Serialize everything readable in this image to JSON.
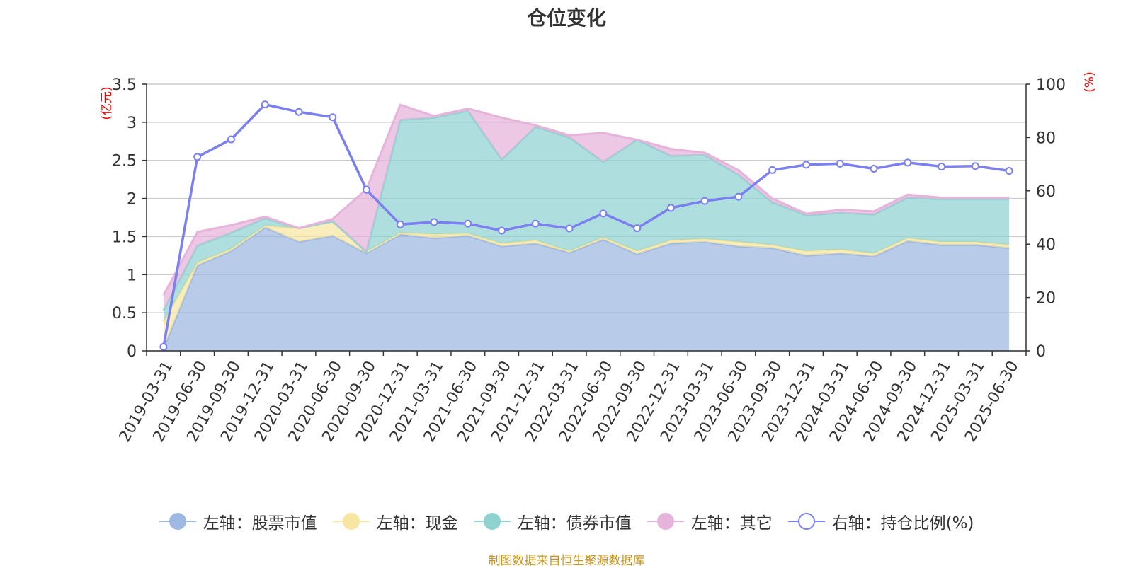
{
  "title": "仓位变化",
  "source_note": "制图数据来自恒生聚源数据库",
  "colors": {
    "stock": "#9db8e2",
    "cash": "#f7e6a1",
    "bond": "#8fd3d1",
    "other": "#e6b3db",
    "ratio": "#7b7ff0",
    "axis_label": "#ff0000"
  },
  "chart_data": {
    "type": "area",
    "x": [
      "2019-03-31",
      "2019-06-30",
      "2019-09-30",
      "2019-12-31",
      "2020-03-31",
      "2020-06-30",
      "2020-09-30",
      "2020-12-31",
      "2021-03-31",
      "2021-06-30",
      "2021-09-30",
      "2021-12-31",
      "2022-03-31",
      "2022-06-30",
      "2022-09-30",
      "2022-12-31",
      "2023-03-31",
      "2023-06-30",
      "2023-09-30",
      "2023-12-31",
      "2024-03-31",
      "2024-06-30",
      "2024-09-30",
      "2024-12-31",
      "2025-03-31",
      "2025-06-30"
    ],
    "left_axis": {
      "label": "(亿元)",
      "ylim": [
        0,
        3.5
      ],
      "ticks": [
        "0",
        "0.5",
        "1",
        "1.5",
        "2",
        "2.5",
        "3",
        "3.5"
      ]
    },
    "right_axis": {
      "label": "(%)",
      "ylim": [
        0,
        100
      ],
      "ticks": [
        "0",
        "20",
        "40",
        "60",
        "80",
        "100"
      ]
    },
    "series": [
      {
        "name": "左轴：股票市值",
        "axis": "left",
        "values": [
          0.03,
          1.12,
          1.31,
          1.62,
          1.43,
          1.51,
          1.28,
          1.53,
          1.48,
          1.51,
          1.37,
          1.41,
          1.29,
          1.46,
          1.27,
          1.41,
          1.43,
          1.37,
          1.35,
          1.25,
          1.28,
          1.24,
          1.44,
          1.39,
          1.39,
          1.35
        ]
      },
      {
        "name": "左轴：现金",
        "axis": "left",
        "values": [
          0.35,
          0.04,
          0.03,
          0.02,
          0.18,
          0.19,
          0.02,
          0.02,
          0.05,
          0.03,
          0.04,
          0.04,
          0.02,
          0.03,
          0.04,
          0.04,
          0.04,
          0.06,
          0.04,
          0.06,
          0.05,
          0.04,
          0.04,
          0.04,
          0.04,
          0.04
        ]
      },
      {
        "name": "左轴：债券市值",
        "axis": "left",
        "values": [
          0.15,
          0.22,
          0.21,
          0.1,
          0.0,
          0.0,
          0.0,
          1.48,
          1.53,
          1.61,
          1.1,
          1.49,
          1.49,
          0.99,
          1.46,
          1.11,
          1.1,
          0.88,
          0.56,
          0.47,
          0.48,
          0.51,
          0.53,
          0.56,
          0.56,
          0.6
        ]
      },
      {
        "name": "左轴：其它",
        "axis": "left",
        "values": [
          0.2,
          0.18,
          0.1,
          0.02,
          0.0,
          0.03,
          0.82,
          0.2,
          0.02,
          0.03,
          0.55,
          0.02,
          0.03,
          0.38,
          0.0,
          0.09,
          0.03,
          0.06,
          0.05,
          0.02,
          0.04,
          0.04,
          0.04,
          0.02,
          0.02,
          0.02
        ]
      },
      {
        "name": "右轴：持仓比例(%)",
        "axis": "right",
        "values": [
          1.5,
          72.7,
          79.3,
          92.4,
          89.6,
          87.6,
          60.4,
          47.4,
          48.3,
          47.7,
          45.1,
          47.7,
          45.9,
          51.5,
          46.0,
          53.6,
          56.2,
          57.8,
          67.8,
          69.8,
          70.2,
          68.3,
          70.6,
          69.1,
          69.3,
          67.5
        ]
      }
    ]
  }
}
